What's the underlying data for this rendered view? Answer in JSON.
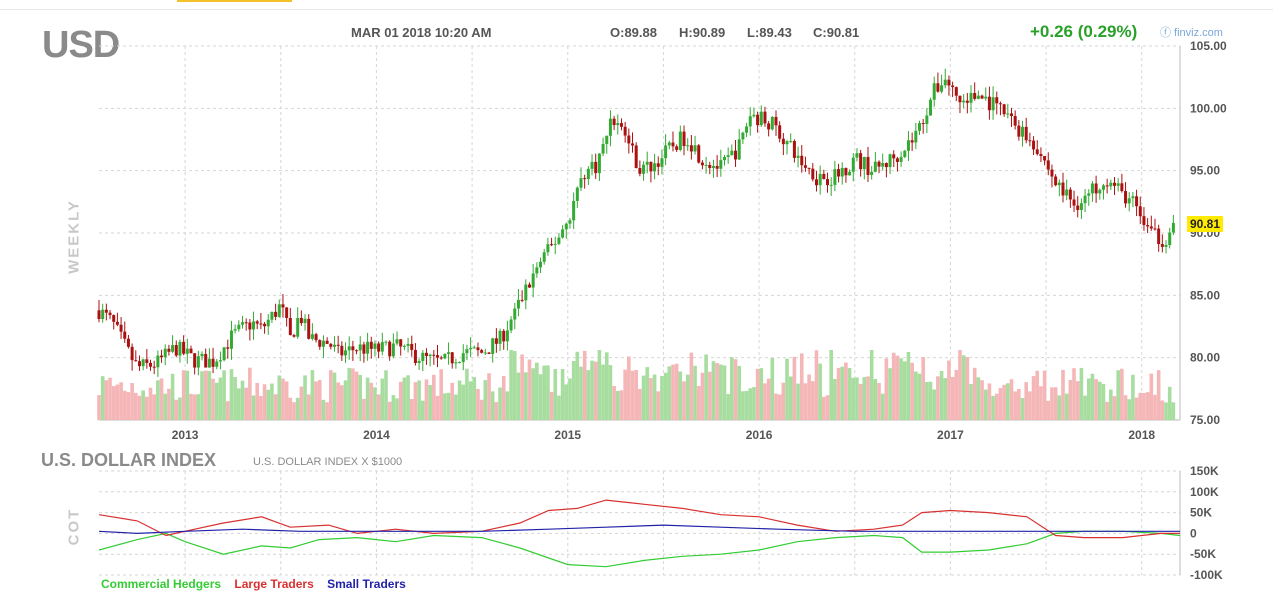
{
  "header": {
    "symbol": "USD",
    "datetime": "MAR 01 2018 10:20 AM",
    "open": "O:89.88",
    "high": "H:90.89",
    "low": "L:89.43",
    "close": "C:90.81",
    "change": "+0.26 (0.29%)",
    "brand": "ⓕ finviz.com",
    "last_price": "90.81"
  },
  "labels": {
    "period": "WEEKLY",
    "index_name": "U.S. DOLLAR INDEX",
    "index_sub": "U.S. DOLLAR INDEX X $1000",
    "cot": "COT"
  },
  "legend": [
    {
      "label": "Commercial Hedgers",
      "color": "#33cc33"
    },
    {
      "label": "Large Traders",
      "color": "#d93030"
    },
    {
      "label": "Small Traders",
      "color": "#2222aa"
    }
  ],
  "colors": {
    "up": "#33aa33",
    "down": "#aa1111",
    "vol_up": "#a8dda0",
    "vol_down": "#f4b6b6",
    "grid": "#d6d6d6"
  },
  "chart_data": [
    {
      "type": "candlestick",
      "title": "USD",
      "period": "weekly",
      "x_ticks": [
        "2013",
        "2014",
        "2015",
        "2016",
        "2017",
        "2018"
      ],
      "y_ticks": [
        "105.00",
        "100.00",
        "95.00",
        "90.00",
        "85.00",
        "80.00",
        "75.00"
      ],
      "ylim": [
        75,
        105
      ],
      "xlim": [
        2012.55,
        2018.2
      ],
      "grid": true,
      "price_path": [
        [
          2012.55,
          83.8
        ],
        [
          2012.62,
          82.8
        ],
        [
          2012.7,
          80.5
        ],
        [
          2012.75,
          79.2
        ],
        [
          2012.85,
          79.5
        ],
        [
          2012.95,
          80.8
        ],
        [
          2013.05,
          79.8
        ],
        [
          2013.15,
          79.7
        ],
        [
          2013.25,
          81.8
        ],
        [
          2013.35,
          82.8
        ],
        [
          2013.4,
          82.3
        ],
        [
          2013.5,
          84.2
        ],
        [
          2013.55,
          81.5
        ],
        [
          2013.6,
          83.5
        ],
        [
          2013.65,
          81.5
        ],
        [
          2013.75,
          81.2
        ],
        [
          2013.8,
          80.3
        ],
        [
          2013.9,
          80.8
        ],
        [
          2014.0,
          80.6
        ],
        [
          2014.1,
          80.9
        ],
        [
          2014.25,
          79.9
        ],
        [
          2014.35,
          79.6
        ],
        [
          2014.45,
          80.4
        ],
        [
          2014.55,
          80.4
        ],
        [
          2014.65,
          81.5
        ],
        [
          2014.75,
          84.5
        ],
        [
          2014.85,
          87.5
        ],
        [
          2014.92,
          89.0
        ],
        [
          2015.0,
          91.0
        ],
        [
          2015.08,
          94.8
        ],
        [
          2015.15,
          95.5
        ],
        [
          2015.2,
          97.5
        ],
        [
          2015.22,
          99.5
        ],
        [
          2015.3,
          98.0
        ],
        [
          2015.38,
          95.0
        ],
        [
          2015.45,
          95.5
        ],
        [
          2015.55,
          97.0
        ],
        [
          2015.62,
          97.8
        ],
        [
          2015.7,
          96.0
        ],
        [
          2015.8,
          95.2
        ],
        [
          2015.9,
          97.0
        ],
        [
          2015.95,
          99.5
        ],
        [
          2016.05,
          99.0
        ],
        [
          2016.1,
          98.2
        ],
        [
          2016.2,
          96.0
        ],
        [
          2016.3,
          94.5
        ],
        [
          2016.4,
          94.5
        ],
        [
          2016.5,
          96.0
        ],
        [
          2016.6,
          95.0
        ],
        [
          2016.7,
          96.0
        ],
        [
          2016.8,
          97.5
        ],
        [
          2016.85,
          98.8
        ],
        [
          2016.9,
          101.0
        ],
        [
          2016.97,
          102.5
        ],
        [
          2017.05,
          100.5
        ],
        [
          2017.15,
          101.0
        ],
        [
          2017.25,
          100.0
        ],
        [
          2017.35,
          98.5
        ],
        [
          2017.45,
          97.0
        ],
        [
          2017.55,
          94.0
        ],
        [
          2017.65,
          92.3
        ],
        [
          2017.72,
          93.0
        ],
        [
          2017.8,
          94.5
        ],
        [
          2017.87,
          93.5
        ],
        [
          2017.95,
          92.5
        ],
        [
          2018.05,
          89.8
        ],
        [
          2018.12,
          89.5
        ],
        [
          2018.17,
          90.81
        ]
      ],
      "volume_levels": [
        0.25,
        0.5
      ],
      "last_value": 90.81
    },
    {
      "type": "line",
      "title": "COT",
      "y_ticks": [
        "150K",
        "100K",
        "50K",
        "0",
        "-50K",
        "-100K"
      ],
      "ylim": [
        -100000,
        150000
      ],
      "xlim": [
        2012.55,
        2018.2
      ],
      "grid": true,
      "series": [
        {
          "name": "Commercial Hedgers",
          "color": "#33cc33",
          "points": [
            [
              2012.55,
              -40000
            ],
            [
              2012.75,
              -15000
            ],
            [
              2012.9,
              0
            ],
            [
              2013.0,
              -20000
            ],
            [
              2013.2,
              -50000
            ],
            [
              2013.4,
              -30000
            ],
            [
              2013.55,
              -35000
            ],
            [
              2013.7,
              -15000
            ],
            [
              2013.9,
              -10000
            ],
            [
              2014.1,
              -20000
            ],
            [
              2014.3,
              -5000
            ],
            [
              2014.55,
              -10000
            ],
            [
              2014.75,
              -35000
            ],
            [
              2015.0,
              -75000
            ],
            [
              2015.2,
              -80000
            ],
            [
              2015.4,
              -65000
            ],
            [
              2015.6,
              -55000
            ],
            [
              2015.8,
              -50000
            ],
            [
              2016.0,
              -40000
            ],
            [
              2016.2,
              -20000
            ],
            [
              2016.4,
              -10000
            ],
            [
              2016.6,
              -5000
            ],
            [
              2016.75,
              -10000
            ],
            [
              2016.85,
              -45000
            ],
            [
              2017.0,
              -45000
            ],
            [
              2017.2,
              -40000
            ],
            [
              2017.4,
              -25000
            ],
            [
              2017.55,
              0
            ],
            [
              2017.7,
              5000
            ],
            [
              2017.9,
              5000
            ],
            [
              2018.1,
              0
            ],
            [
              2018.2,
              -5000
            ]
          ]
        },
        {
          "name": "Large Traders",
          "color": "#d93030",
          "points": [
            [
              2012.55,
              45000
            ],
            [
              2012.75,
              30000
            ],
            [
              2012.9,
              -5000
            ],
            [
              2013.05,
              10000
            ],
            [
              2013.2,
              25000
            ],
            [
              2013.4,
              40000
            ],
            [
              2013.55,
              15000
            ],
            [
              2013.75,
              20000
            ],
            [
              2013.9,
              0
            ],
            [
              2014.1,
              10000
            ],
            [
              2014.3,
              0
            ],
            [
              2014.55,
              5000
            ],
            [
              2014.75,
              25000
            ],
            [
              2014.9,
              55000
            ],
            [
              2015.05,
              60000
            ],
            [
              2015.2,
              80000
            ],
            [
              2015.4,
              70000
            ],
            [
              2015.6,
              60000
            ],
            [
              2015.8,
              45000
            ],
            [
              2016.0,
              40000
            ],
            [
              2016.2,
              20000
            ],
            [
              2016.4,
              5000
            ],
            [
              2016.6,
              10000
            ],
            [
              2016.75,
              20000
            ],
            [
              2016.85,
              50000
            ],
            [
              2017.0,
              55000
            ],
            [
              2017.2,
              50000
            ],
            [
              2017.4,
              40000
            ],
            [
              2017.55,
              -5000
            ],
            [
              2017.7,
              -10000
            ],
            [
              2017.9,
              -10000
            ],
            [
              2018.1,
              0
            ],
            [
              2018.2,
              0
            ]
          ]
        },
        {
          "name": "Small Traders",
          "color": "#2222aa",
          "points": [
            [
              2012.55,
              5000
            ],
            [
              2012.75,
              0
            ],
            [
              2013.0,
              5000
            ],
            [
              2013.3,
              10000
            ],
            [
              2013.6,
              5000
            ],
            [
              2013.9,
              5000
            ],
            [
              2014.2,
              5000
            ],
            [
              2014.55,
              5000
            ],
            [
              2014.9,
              10000
            ],
            [
              2015.2,
              15000
            ],
            [
              2015.5,
              20000
            ],
            [
              2015.8,
              15000
            ],
            [
              2016.1,
              10000
            ],
            [
              2016.5,
              5000
            ],
            [
              2016.9,
              5000
            ],
            [
              2017.2,
              5000
            ],
            [
              2017.5,
              5000
            ],
            [
              2017.8,
              5000
            ],
            [
              2018.1,
              5000
            ],
            [
              2018.2,
              5000
            ]
          ]
        }
      ]
    }
  ]
}
